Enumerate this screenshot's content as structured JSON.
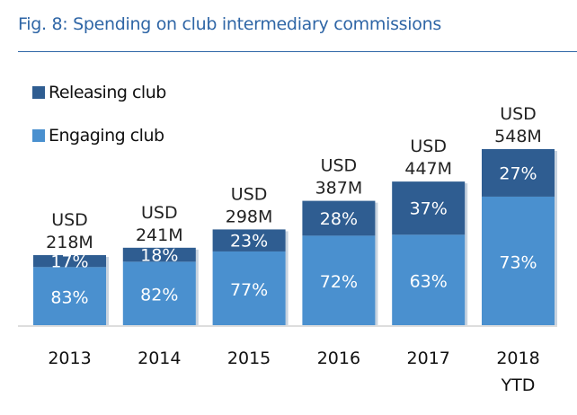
{
  "title": "Fig. 8: Spending on club intermediary commissions",
  "colors": {
    "releasing": "#2f5d91",
    "engaging": "#4a90cf",
    "title": "#2f66a6"
  },
  "chart_data": {
    "type": "bar",
    "stacked": true,
    "title": "Fig. 8: Spending on club intermediary commissions",
    "categories": [
      "2013",
      "2014",
      "2015",
      "2016",
      "2017",
      "2018 YTD"
    ],
    "totals_usd_m": [
      218,
      241,
      298,
      387,
      447,
      548
    ],
    "total_labels": [
      [
        "USD",
        "218M"
      ],
      [
        "USD",
        "241M"
      ],
      [
        "USD",
        "298M"
      ],
      [
        "USD",
        "387M"
      ],
      [
        "USD",
        "447M"
      ],
      [
        "USD",
        "548M"
      ]
    ],
    "series": [
      {
        "name": "Engaging club",
        "values_pct": [
          83,
          82,
          77,
          72,
          63,
          73
        ]
      },
      {
        "name": "Releasing club",
        "values_pct": [
          17,
          18,
          23,
          28,
          37,
          27
        ]
      }
    ],
    "legend": [
      "Releasing club",
      "Engaging club"
    ],
    "legend_position": "top-left",
    "ylim": [
      0,
      548
    ],
    "grid": false
  }
}
